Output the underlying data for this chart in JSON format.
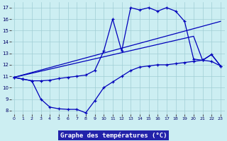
{
  "title": "Graphe des températures (°C)",
  "bg_color": "#cceef2",
  "grid_color": "#a0cdd4",
  "line_color": "#0000bb",
  "xlim": [
    -0.5,
    23.5
  ],
  "ylim": [
    7.5,
    17.5
  ],
  "xticks": [
    0,
    1,
    2,
    3,
    4,
    5,
    6,
    7,
    8,
    9,
    10,
    11,
    12,
    13,
    14,
    15,
    16,
    17,
    18,
    19,
    20,
    21,
    22,
    23
  ],
  "yticks": [
    8,
    9,
    10,
    11,
    12,
    13,
    14,
    15,
    16,
    17
  ],
  "xlabel_bg": "#2222aa",
  "xlabel_color": "#ffffff",
  "line1_x": [
    0,
    1,
    2,
    3,
    4,
    5,
    6,
    7,
    8,
    9,
    10,
    11,
    12,
    13,
    14,
    15,
    16,
    17,
    18,
    19,
    20,
    21,
    22,
    23
  ],
  "line1_y": [
    10.9,
    10.75,
    10.6,
    10.6,
    10.65,
    10.8,
    10.9,
    11.0,
    11.1,
    11.5,
    13.2,
    16.0,
    13.2,
    17.0,
    16.8,
    17.0,
    16.7,
    17.0,
    16.7,
    15.8,
    12.5,
    12.4,
    12.9,
    11.9
  ],
  "line2_x": [
    0,
    1,
    2,
    3,
    4,
    5,
    6,
    7,
    8,
    9,
    10,
    11,
    12,
    13,
    14,
    15,
    16,
    17,
    18,
    19,
    20,
    21,
    22,
    23
  ],
  "line2_y": [
    10.9,
    10.75,
    10.6,
    9.0,
    8.3,
    8.15,
    8.1,
    8.1,
    7.8,
    8.85,
    10.0,
    10.5,
    11.0,
    11.5,
    11.8,
    11.9,
    12.0,
    12.0,
    12.1,
    12.2,
    12.3,
    12.4,
    12.3,
    11.9
  ],
  "line3_x": [
    0,
    23
  ],
  "line3_y": [
    10.9,
    15.8
  ],
  "line4_x": [
    0,
    20,
    21,
    22,
    23
  ],
  "line4_y": [
    10.9,
    14.5,
    12.4,
    12.9,
    11.9
  ]
}
